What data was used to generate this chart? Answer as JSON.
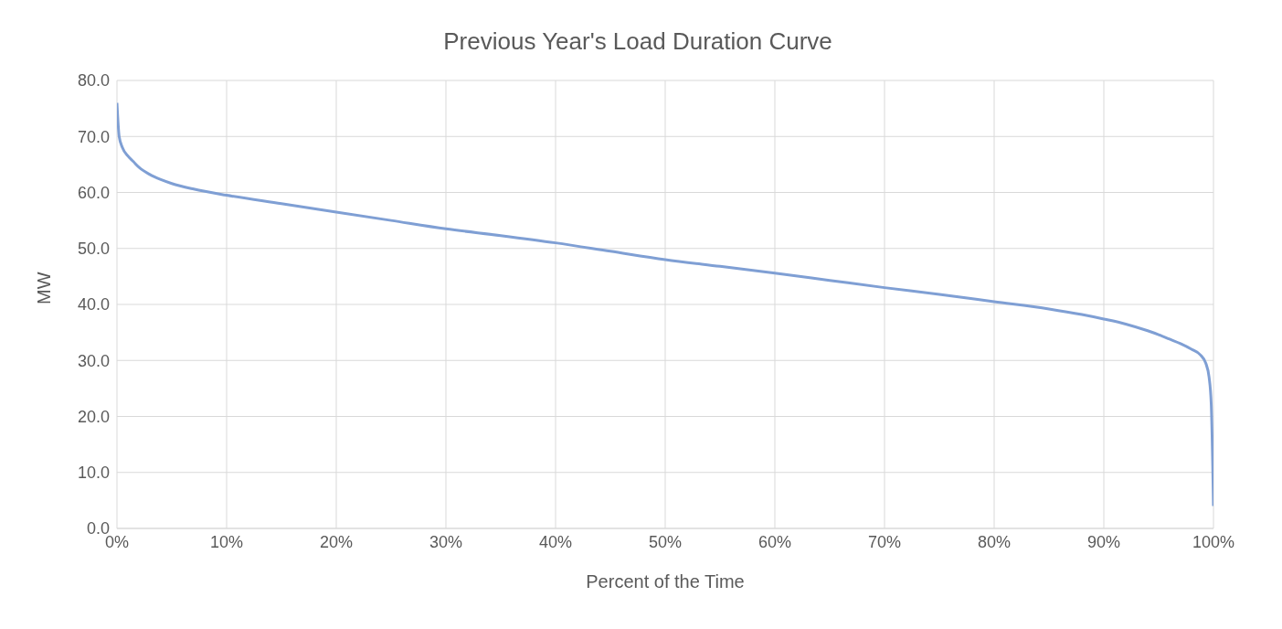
{
  "chart_data": {
    "type": "line",
    "title": "Previous Year's Load Duration Curve",
    "xlabel": "Percent of the Time",
    "ylabel": "MW",
    "x": [
      0,
      0.2,
      0.5,
      1,
      1.5,
      2,
      3,
      4,
      5,
      7,
      10,
      15,
      20,
      25,
      30,
      35,
      40,
      45,
      50,
      55,
      60,
      65,
      70,
      75,
      80,
      85,
      88,
      90,
      92,
      94,
      95,
      96,
      97,
      98,
      98.8,
      99.3,
      99.6,
      99.8,
      100
    ],
    "series": [
      {
        "color": "#7f9fd4",
        "values": [
          76,
          70,
          68,
          66.5,
          65.5,
          64.5,
          63.2,
          62.3,
          61.6,
          60.6,
          59.5,
          58,
          56.5,
          55,
          53.5,
          52.3,
          51,
          49.5,
          48,
          46.8,
          45.6,
          44.3,
          43,
          41.8,
          40.5,
          39.2,
          38.2,
          37.4,
          36.5,
          35.3,
          34.6,
          33.8,
          33,
          32,
          31,
          29.5,
          27,
          22,
          4
        ]
      }
    ],
    "xlim": [
      0,
      100
    ],
    "xticks": [
      {
        "value": 0,
        "label": "0%"
      },
      {
        "value": 10,
        "label": "10%"
      },
      {
        "value": 20,
        "label": "20%"
      },
      {
        "value": 30,
        "label": "30%"
      },
      {
        "value": 40,
        "label": "40%"
      },
      {
        "value": 50,
        "label": "50%"
      },
      {
        "value": 60,
        "label": "60%"
      },
      {
        "value": 70,
        "label": "70%"
      },
      {
        "value": 80,
        "label": "80%"
      },
      {
        "value": 90,
        "label": "90%"
      },
      {
        "value": 100,
        "label": "100%"
      }
    ],
    "ylim": [
      0,
      80
    ],
    "yticks": [
      {
        "value": 0,
        "label": "0.0"
      },
      {
        "value": 10,
        "label": "10.0"
      },
      {
        "value": 20,
        "label": "20.0"
      },
      {
        "value": 30,
        "label": "30.0"
      },
      {
        "value": 40,
        "label": "40.0"
      },
      {
        "value": 50,
        "label": "50.0"
      },
      {
        "value": 60,
        "label": "60.0"
      },
      {
        "value": 70,
        "label": "70.0"
      },
      {
        "value": 80,
        "label": "80.0"
      }
    ],
    "grid": true,
    "marker": "none",
    "line_style": "solid",
    "legend": false
  }
}
